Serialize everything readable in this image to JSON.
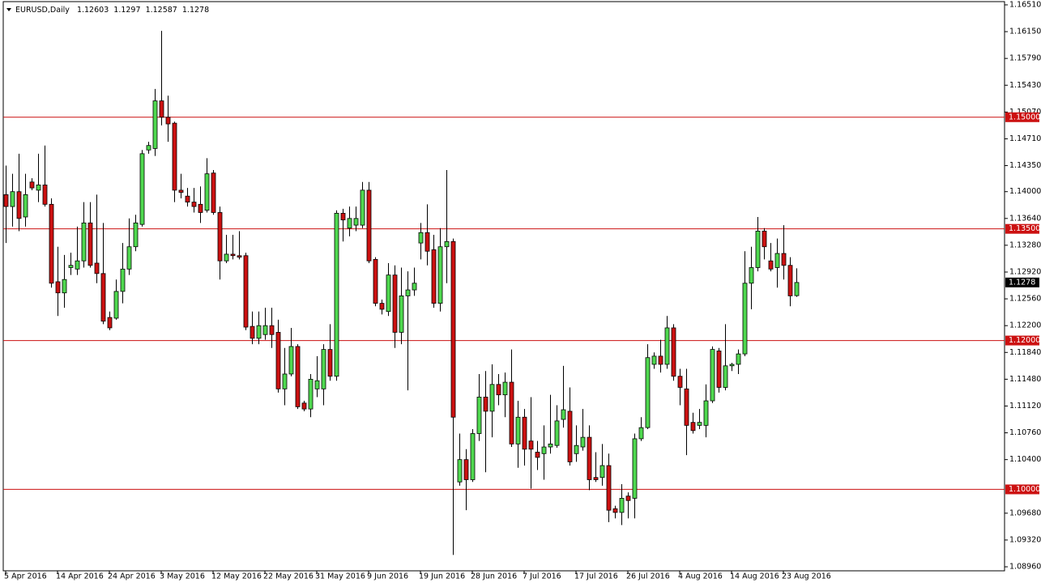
{
  "chart_data": {
    "type": "candlestick",
    "symbol": "EURUSD,Daily",
    "categories": [
      "5 Apr 2016",
      null,
      null,
      null,
      null,
      null,
      null,
      null,
      "14 Apr 2016",
      null,
      null,
      null,
      null,
      null,
      null,
      null,
      "24 Apr 2016",
      null,
      null,
      null,
      null,
      null,
      null,
      null,
      "3 May 2016",
      null,
      null,
      null,
      null,
      null,
      null,
      null,
      "12 May 2016",
      null,
      null,
      null,
      null,
      null,
      null,
      null,
      "22 May 2016",
      null,
      null,
      null,
      null,
      null,
      null,
      null,
      "31 May 2016",
      null,
      null,
      null,
      null,
      null,
      null,
      null,
      "9 Jun 2016",
      null,
      null,
      null,
      null,
      null,
      null,
      null,
      "19 Jun 2016",
      null,
      null,
      null,
      null,
      null,
      null,
      null,
      "28 Jun 2016",
      null,
      null,
      null,
      null,
      null,
      null,
      null,
      "7 Jul 2016",
      null,
      null,
      null,
      null,
      null,
      null,
      null,
      "17 Jul 2016",
      null,
      null,
      null,
      null,
      null,
      null,
      null,
      "26 Jul 2016",
      null,
      null,
      null,
      null,
      null,
      null,
      null,
      "4 Aug 2016",
      null,
      null,
      null,
      null,
      null,
      null,
      null,
      "14 Aug 2016",
      null,
      null,
      null,
      null,
      null,
      null,
      null,
      "23 Aug 2016",
      null,
      null
    ],
    "open": [
      1.1396,
      1.138,
      1.14,
      1.1366,
      1.1413,
      1.1402,
      1.1409,
      1.1383,
      1.1279,
      1.1264,
      1.1298,
      1.1296,
      1.1307,
      1.1358,
      1.1304,
      1.129,
      1.1231,
      1.123,
      1.1266,
      1.1296,
      1.1326,
      1.1356,
      1.1456,
      1.1458,
      1.1522,
      1.15,
      1.1492,
      1.1402,
      1.1394,
      1.1386,
      1.1383,
      1.1375,
      1.1425,
      1.1372,
      1.1307,
      1.1316,
      1.1314,
      1.1314,
      1.1219,
      1.1203,
      1.1208,
      1.122,
      1.1211,
      1.1135,
      1.1155,
      1.1192,
      1.1116,
      1.1108,
      1.1135,
      1.1135,
      1.1188,
      1.1152,
      1.1371,
      1.1351,
      1.1355,
      1.1355,
      1.1402,
      1.1309,
      1.125,
      1.1239,
      1.1288,
      1.1211,
      1.126,
      1.1268,
      1.1331,
      1.1345,
      1.1322,
      1.125,
      1.1326,
      1.1333,
      1.101,
      1.104,
      1.1013,
      1.1075,
      1.1124,
      1.1105,
      1.1141,
      1.1127,
      1.1144,
      1.1061,
      1.1097,
      1.1065,
      1.105,
      1.1048,
      1.1057,
      1.1059,
      1.1094,
      1.1105,
      1.1048,
      1.1057,
      1.107,
      1.1016,
      1.1016,
      1.1032,
      1.0974,
      1.0969,
      1.0991,
      1.0988,
      1.1068,
      1.1083,
      1.1168,
      1.1179,
      1.1168,
      1.1217,
      1.1152,
      1.1135,
      1.109,
      1.1086,
      1.1086,
      1.1119,
      1.1186,
      1.1137,
      1.1166,
      1.1168,
      1.1182,
      1.1277,
      1.1298,
      1.1347,
      1.1307,
      1.1298,
      1.1317,
      1.1301,
      1.12603
    ],
    "high": [
      1.1435,
      1.1424,
      1.1451,
      1.1424,
      1.1418,
      1.1451,
      1.1462,
      1.1391,
      1.1326,
      1.1315,
      1.1318,
      1.1353,
      1.1386,
      1.1386,
      1.1396,
      1.1358,
      1.1239,
      1.1282,
      1.1331,
      1.1364,
      1.1369,
      1.1456,
      1.1467,
      1.1538,
      1.1616,
      1.1529,
      1.1494,
      1.1424,
      1.1405,
      1.1405,
      1.1407,
      1.1445,
      1.1429,
      1.138,
      1.1342,
      1.1342,
      1.1347,
      1.1318,
      1.1239,
      1.1239,
      1.1244,
      1.1244,
      1.1228,
      1.119,
      1.1217,
      1.1195,
      1.1119,
      1.1155,
      1.1179,
      1.1195,
      1.1222,
      1.1375,
      1.1377,
      1.138,
      1.138,
      1.1413,
      1.1413,
      1.1312,
      1.1255,
      1.1304,
      1.1301,
      1.1298,
      1.1293,
      1.1298,
      1.1358,
      1.1383,
      1.1342,
      1.1351,
      1.1429,
      1.1337,
      1.1075,
      1.1054,
      1.1081,
      1.1155,
      1.1159,
      1.1168,
      1.1155,
      1.1157,
      1.1188,
      1.1119,
      1.1108,
      1.1124,
      1.1065,
      1.1086,
      1.1127,
      1.1113,
      1.1166,
      1.1137,
      1.1086,
      1.1108,
      1.1086,
      1.105,
      1.1061,
      1.1048,
      1.0978,
      1.1007,
      1.0996,
      1.1075,
      1.1097,
      1.1195,
      1.1184,
      1.1201,
      1.1233,
      1.1222,
      1.1162,
      1.1162,
      1.1103,
      1.1108,
      1.1141,
      1.1192,
      1.119,
      1.1222,
      1.117,
      1.1188,
      1.132,
      1.1326,
      1.1366,
      1.1351,
      1.1331,
      1.1337,
      1.1355,
      1.1312,
      1.1297
    ],
    "low": [
      1.1331,
      1.1353,
      1.1347,
      1.1353,
      1.1402,
      1.1386,
      1.138,
      1.1271,
      1.1233,
      1.1244,
      1.1288,
      1.1288,
      1.1298,
      1.1298,
      1.1277,
      1.1222,
      1.1214,
      1.1228,
      1.125,
      1.1288,
      1.132,
      1.1353,
      1.1451,
      1.1448,
      1.1489,
      1.1467,
      1.1386,
      1.1391,
      1.138,
      1.1372,
      1.1358,
      1.1372,
      1.1369,
      1.1282,
      1.1304,
      1.1309,
      1.1309,
      1.1214,
      1.1195,
      1.1195,
      1.1201,
      1.119,
      1.113,
      1.1113,
      1.1152,
      1.1108,
      1.1105,
      1.1097,
      1.1124,
      1.1113,
      1.1146,
      1.1146,
      1.1333,
      1.134,
      1.1347,
      1.1351,
      1.1304,
      1.1246,
      1.1235,
      1.1233,
      1.119,
      1.1195,
      1.1133,
      1.126,
      1.1309,
      1.1301,
      1.1244,
      1.1239,
      1.1277,
      1.0912,
      1.1005,
      1.0972,
      1.101,
      1.1065,
      1.1023,
      1.107,
      1.1113,
      1.1097,
      1.1057,
      1.1029,
      1.1032,
      1.1001,
      1.1026,
      1.1013,
      1.1048,
      1.1056,
      1.1083,
      1.1032,
      1.1037,
      1.1052,
      1.0999,
      1.101,
      1.1005,
      1.0956,
      1.0961,
      1.0952,
      1.0961,
      1.0961,
      1.1065,
      1.1081,
      1.1162,
      1.1157,
      1.1162,
      1.1146,
      1.1113,
      1.1046,
      1.1075,
      1.1081,
      1.107,
      1.1116,
      1.113,
      1.1133,
      1.1159,
      1.1155,
      1.1179,
      1.1242,
      1.1293,
      1.1309,
      1.1293,
      1.1271,
      1.1282,
      1.1246,
      1.12587
    ],
    "close": [
      1.138,
      1.14,
      1.1364,
      1.1396,
      1.1405,
      1.1409,
      1.1383,
      1.1277,
      1.1264,
      1.1282,
      1.1301,
      1.1307,
      1.1358,
      1.1301,
      1.129,
      1.1226,
      1.1217,
      1.1266,
      1.1296,
      1.1326,
      1.1358,
      1.1451,
      1.1462,
      1.1522,
      1.15,
      1.1491,
      1.1402,
      1.1399,
      1.1386,
      1.138,
      1.1372,
      1.1424,
      1.1372,
      1.1307,
      1.1316,
      1.1314,
      1.1312,
      1.1218,
      1.1203,
      1.122,
      1.122,
      1.1208,
      1.1135,
      1.1155,
      1.1192,
      1.1111,
      1.1108,
      1.1148,
      1.1146,
      1.1188,
      1.1152,
      1.1371,
      1.1362,
      1.1364,
      1.1364,
      1.1402,
      1.1307,
      1.125,
      1.1242,
      1.1288,
      1.1211,
      1.126,
      1.1268,
      1.1277,
      1.1345,
      1.132,
      1.125,
      1.1326,
      1.1333,
      1.1097,
      1.104,
      1.1013,
      1.1075,
      1.1124,
      1.1105,
      1.1141,
      1.1127,
      1.1144,
      1.1061,
      1.1097,
      1.1054,
      1.1054,
      1.1043,
      1.1057,
      1.1061,
      1.1092,
      1.1107,
      1.1037,
      1.1059,
      1.107,
      1.1013,
      1.1013,
      1.1032,
      1.0972,
      1.0969,
      1.0988,
      1.0985,
      1.1068,
      1.1083,
      1.1177,
      1.1179,
      1.1168,
      1.1217,
      1.1152,
      1.1137,
      1.1086,
      1.1079,
      1.109,
      1.1119,
      1.1188,
      1.1137,
      1.1166,
      1.1168,
      1.1182,
      1.1277,
      1.1298,
      1.1347,
      1.1326,
      1.1296,
      1.1317,
      1.1301,
      1.126,
      1.1278
    ],
    "up_color": "#4fd84f",
    "down_color": "#cc1111",
    "wick_color": "#000000",
    "ylim": [
      1.08906,
      1.16575
    ],
    "yticks": [
      {
        "value": 1.1651,
        "label": "1.16510"
      },
      {
        "value": 1.1615,
        "label": "1.16150"
      },
      {
        "value": 1.1579,
        "label": "1.15790"
      },
      {
        "value": 1.1543,
        "label": "1.15430"
      },
      {
        "value": 1.1507,
        "label": "1.15070"
      },
      {
        "value": 1.1471,
        "label": "1.14710"
      },
      {
        "value": 1.1435,
        "label": "1.14350"
      },
      {
        "value": 1.14,
        "label": "1.14000"
      },
      {
        "value": 1.1364,
        "label": "1.13640"
      },
      {
        "value": 1.1328,
        "label": "1.13280"
      },
      {
        "value": 1.1292,
        "label": "1.12920"
      },
      {
        "value": 1.1256,
        "label": "1.12560"
      },
      {
        "value": 1.122,
        "label": "1.12200"
      },
      {
        "value": 1.1184,
        "label": "1.11840"
      },
      {
        "value": 1.1148,
        "label": "1.11480"
      },
      {
        "value": 1.1112,
        "label": "1.11120"
      },
      {
        "value": 1.1076,
        "label": "1.10760"
      },
      {
        "value": 1.104,
        "label": "1.10400"
      },
      {
        "value": 1.0968,
        "label": "1.09680"
      },
      {
        "value": 1.0932,
        "label": "1.09320"
      },
      {
        "value": 1.0896,
        "label": "1.08960"
      }
    ],
    "hlines": [
      {
        "value": 1.15,
        "label": "1.15000"
      },
      {
        "value": 1.135,
        "label": "1.13500"
      },
      {
        "value": 1.12,
        "label": "1.12000"
      },
      {
        "value": 1.1,
        "label": "1.10000"
      }
    ],
    "hline_color": "#cc1111"
  }
}
